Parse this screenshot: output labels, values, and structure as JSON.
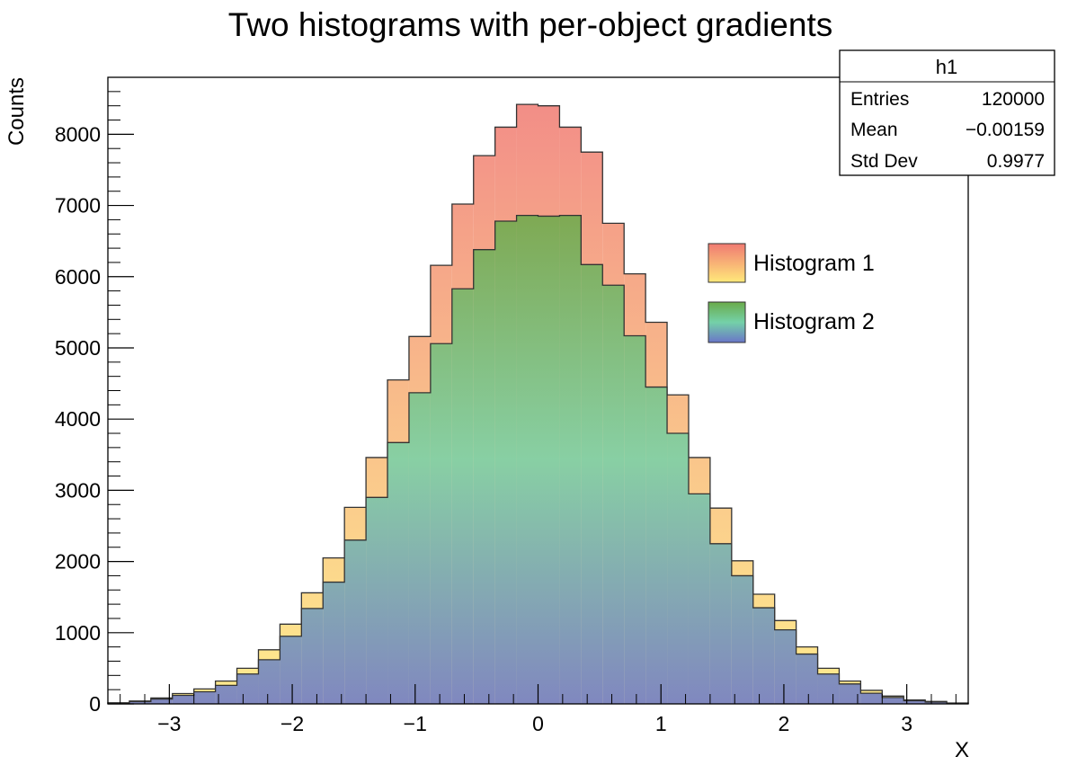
{
  "chart_data": {
    "type": "histogram",
    "title": "Two histograms with per-object gradients",
    "xlabel": "X",
    "ylabel": "Counts",
    "xlim": [
      -3.5,
      3.5
    ],
    "ylim": [
      0,
      8800
    ],
    "x_ticks": [
      {
        "value": -3,
        "label": "−3"
      },
      {
        "value": -2,
        "label": "−2"
      },
      {
        "value": -1,
        "label": "−1"
      },
      {
        "value": 0,
        "label": "0"
      },
      {
        "value": 1,
        "label": "1"
      },
      {
        "value": 2,
        "label": "2"
      },
      {
        "value": 3,
        "label": "3"
      }
    ],
    "y_ticks": [
      {
        "value": 0,
        "label": "0"
      },
      {
        "value": 1000,
        "label": "1000"
      },
      {
        "value": 2000,
        "label": "2000"
      },
      {
        "value": 3000,
        "label": "3000"
      },
      {
        "value": 4000,
        "label": "4000"
      },
      {
        "value": 5000,
        "label": "5000"
      },
      {
        "value": 6000,
        "label": "6000"
      },
      {
        "value": 7000,
        "label": "7000"
      },
      {
        "value": 8000,
        "label": "8000"
      }
    ],
    "bin_edges": [
      -3.5,
      -3.325,
      -3.15,
      -2.975,
      -2.8,
      -2.625,
      -2.45,
      -2.275,
      -2.1,
      -1.925,
      -1.75,
      -1.575,
      -1.4,
      -1.225,
      -1.05,
      -0.875,
      -0.7,
      -0.525,
      -0.35,
      -0.175,
      0,
      0.175,
      0.35,
      0.525,
      0.7,
      0.875,
      1.05,
      1.225,
      1.4,
      1.575,
      1.75,
      1.925,
      2.1,
      2.275,
      2.45,
      2.625,
      2.8,
      2.975,
      3.15,
      3.325,
      3.5
    ],
    "series": [
      {
        "name": "Histogram 1",
        "gradient": [
          "#ffe97a",
          "#f07a72"
        ],
        "values": [
          16,
          40,
          84,
          145,
          210,
          320,
          500,
          760,
          1120,
          1560,
          2050,
          2760,
          3460,
          4550,
          5160,
          6160,
          7020,
          7700,
          8100,
          8420,
          8400,
          8100,
          7750,
          6750,
          6040,
          5360,
          4340,
          3460,
          2750,
          2010,
          1540,
          1170,
          800,
          500,
          320,
          190,
          110,
          55,
          35,
          12
        ]
      },
      {
        "name": "Histogram 2",
        "gradient": [
          "#6a76c8",
          "#74d1a8",
          "#6aab4a"
        ],
        "values": [
          12,
          32,
          68,
          120,
          170,
          260,
          420,
          620,
          950,
          1340,
          1710,
          2300,
          2900,
          3670,
          4370,
          5060,
          5830,
          6380,
          6780,
          6860,
          6850,
          6860,
          6170,
          5880,
          5170,
          4450,
          3800,
          2950,
          2250,
          1800,
          1350,
          1040,
          700,
          420,
          280,
          150,
          90,
          45,
          25,
          8
        ]
      }
    ],
    "legend": {
      "position": "right, upper-middle",
      "entries": [
        "Histogram 1",
        "Histogram 2"
      ]
    },
    "stats_box": {
      "title": "h1",
      "rows": [
        {
          "label": "Entries",
          "value": "120000"
        },
        {
          "label": "Mean",
          "value": "−0.00159"
        },
        {
          "label": "Std Dev",
          "value": "0.9977"
        }
      ]
    }
  }
}
